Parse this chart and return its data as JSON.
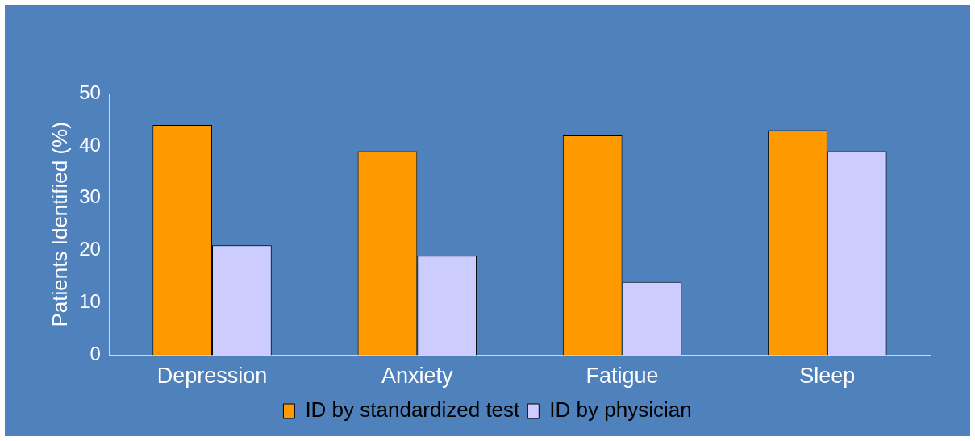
{
  "chart_data": {
    "type": "bar",
    "ylabel": "Patients Identified (%)",
    "categories": [
      "Depression",
      "Anxiety",
      "Fatigue",
      "Sleep"
    ],
    "series": [
      {
        "name": "ID by standardized test",
        "color": "#ff9900",
        "values": [
          44,
          39,
          42,
          43
        ]
      },
      {
        "name": "ID by physician",
        "color": "#ccccff",
        "values": [
          21,
          19,
          14,
          39
        ]
      }
    ],
    "ylim": [
      0,
      50
    ],
    "yticks": [
      0,
      10,
      20,
      30,
      40,
      50
    ],
    "grid": false,
    "legend": "bottom"
  }
}
